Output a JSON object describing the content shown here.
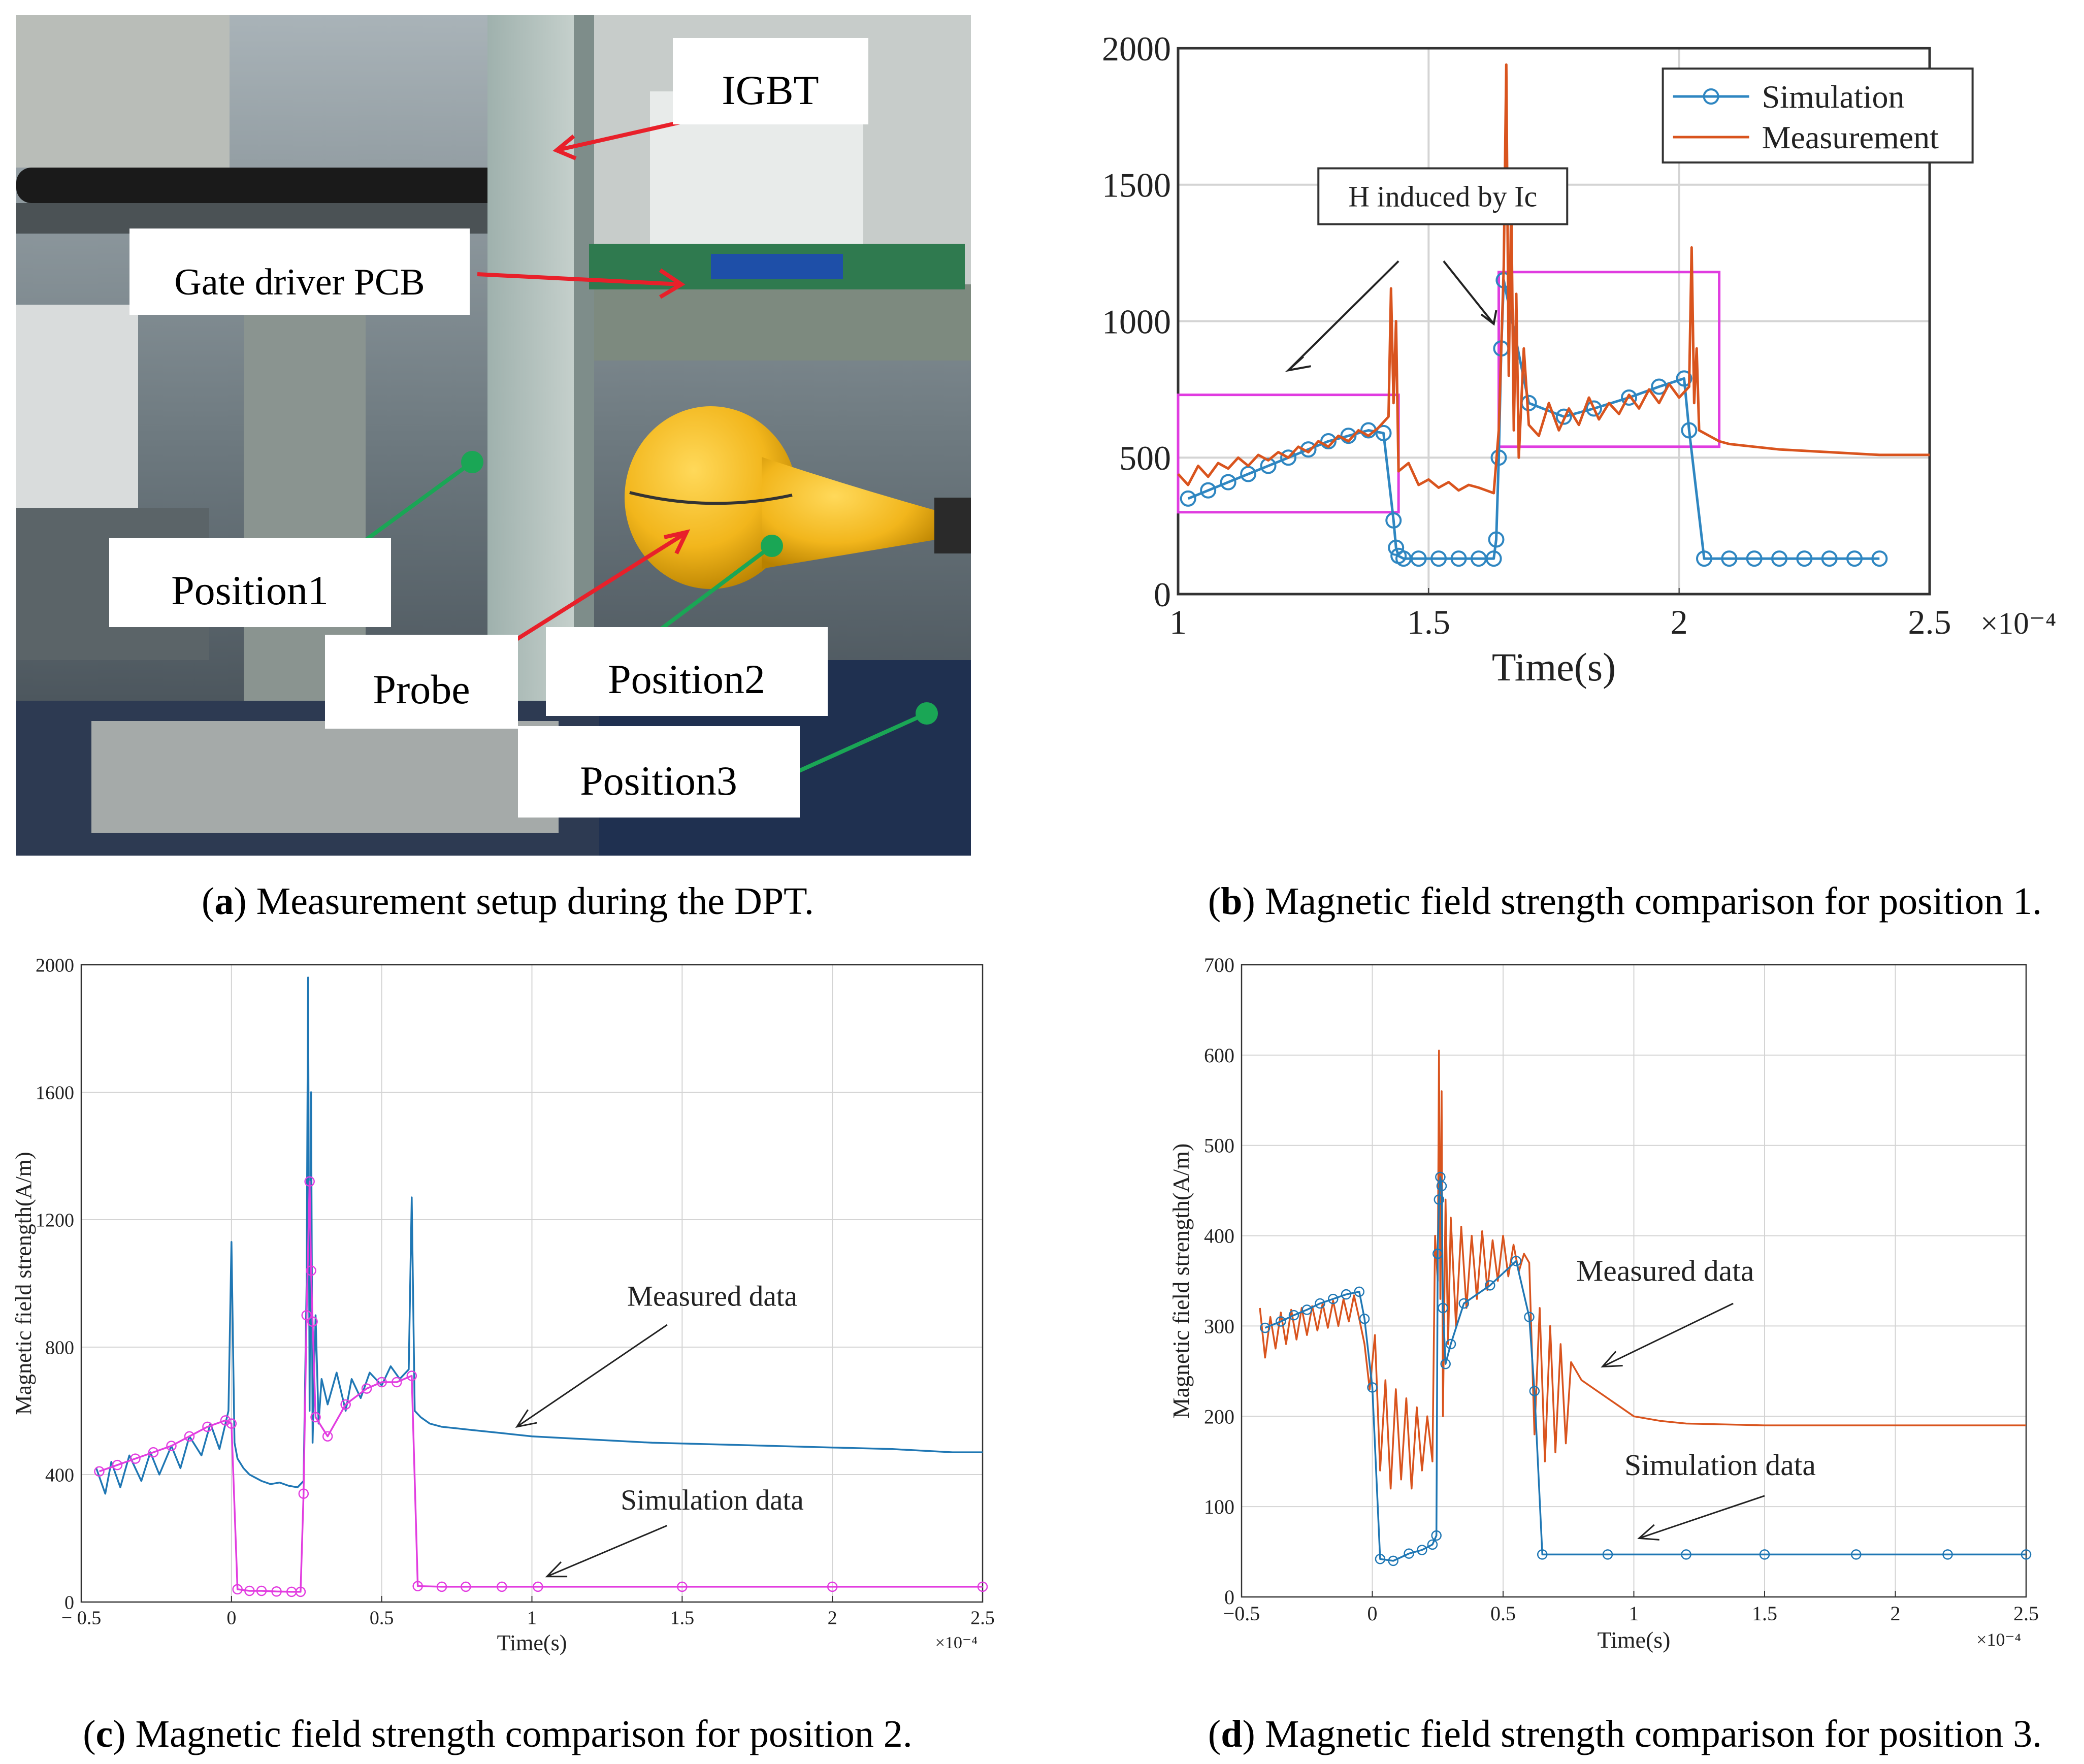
{
  "panel_a": {
    "labels": {
      "igbt": "IGBT",
      "gate_driver": "Gate driver PCB",
      "position1": "Position1",
      "probe": "Probe",
      "position2": "Position2",
      "position3": "Position3"
    },
    "caption": {
      "letter": "a",
      "text": "Measurement setup during the DPT."
    },
    "colors": {
      "arrow_red": "#e8202a",
      "arrow_green": "#1aa655",
      "probe_yellow": "#f2b61c"
    }
  },
  "captions": {
    "b": {
      "letter": "b",
      "text": "Magnetic field strength comparison for position 1."
    },
    "c": {
      "letter": "c",
      "text": "Magnetic field strength comparison for position 2."
    },
    "d": {
      "letter": "d",
      "text": "Magnetic field strength comparison for position 3."
    }
  },
  "chart_data": [
    {
      "id": "b",
      "type": "line",
      "xlabel": "Time(s)",
      "ylabel": "",
      "x_multiplier": "×10⁻⁴",
      "xlim": [
        1,
        2.5
      ],
      "ylim": [
        0,
        2000
      ],
      "xticks": [
        1,
        1.5,
        2,
        2.5
      ],
      "yticks": [
        0,
        500,
        1000,
        1500,
        2000
      ],
      "xtick_labels": [
        "1",
        "1.5",
        "2",
        "2.5"
      ],
      "ytick_labels": [
        "0",
        "500",
        "1000",
        "1500",
        "2000"
      ],
      "grid": true,
      "legend": {
        "position": "top-right",
        "entries": [
          "Simulation",
          "Measurement"
        ]
      },
      "annotation": "H induced by Ic",
      "highlight_boxes": [
        {
          "x": [
            1.0,
            1.44
          ],
          "y": [
            300,
            730
          ]
        },
        {
          "x": [
            1.64,
            2.08
          ],
          "y": [
            540,
            1180
          ]
        }
      ],
      "series": [
        {
          "name": "Simulation",
          "color": "#2e86c1",
          "marker": "circle",
          "x": [
            1.02,
            1.06,
            1.1,
            1.14,
            1.18,
            1.22,
            1.26,
            1.3,
            1.34,
            1.38,
            1.41,
            1.43,
            1.435,
            1.44,
            1.45,
            1.48,
            1.52,
            1.56,
            1.6,
            1.63,
            1.635,
            1.64,
            1.645,
            1.65,
            1.7,
            1.77,
            1.83,
            1.9,
            1.96,
            2.01,
            2.02,
            2.05,
            2.1,
            2.15,
            2.2,
            2.25,
            2.3,
            2.35,
            2.4
          ],
          "y": [
            350,
            380,
            410,
            440,
            470,
            500,
            530,
            560,
            580,
            600,
            590,
            270,
            170,
            140,
            130,
            130,
            130,
            130,
            130,
            130,
            200,
            500,
            900,
            1150,
            700,
            650,
            680,
            720,
            760,
            790,
            600,
            130,
            130,
            130,
            130,
            130,
            130,
            130,
            130
          ]
        },
        {
          "name": "Measurement",
          "color": "#d9541e",
          "x": [
            1.0,
            1.02,
            1.04,
            1.06,
            1.08,
            1.1,
            1.12,
            1.14,
            1.16,
            1.18,
            1.2,
            1.22,
            1.24,
            1.26,
            1.28,
            1.3,
            1.32,
            1.34,
            1.36,
            1.38,
            1.4,
            1.42,
            1.425,
            1.43,
            1.435,
            1.44,
            1.46,
            1.48,
            1.5,
            1.52,
            1.54,
            1.56,
            1.58,
            1.6,
            1.63,
            1.64,
            1.65,
            1.655,
            1.66,
            1.665,
            1.67,
            1.675,
            1.68,
            1.69,
            1.7,
            1.72,
            1.74,
            1.76,
            1.78,
            1.8,
            1.82,
            1.84,
            1.86,
            1.88,
            1.9,
            1.92,
            1.94,
            1.96,
            1.98,
            2.0,
            2.02,
            2.025,
            2.03,
            2.035,
            2.04,
            2.06,
            2.08,
            2.1,
            2.15,
            2.2,
            2.3,
            2.4,
            2.5
          ],
          "y": [
            440,
            400,
            470,
            430,
            480,
            460,
            500,
            470,
            510,
            490,
            520,
            500,
            540,
            520,
            560,
            540,
            580,
            560,
            600,
            580,
            610,
            650,
            1120,
            700,
            1000,
            450,
            480,
            400,
            420,
            390,
            410,
            380,
            400,
            390,
            370,
            600,
            1200,
            1940,
            800,
            1450,
            600,
            1100,
            500,
            900,
            620,
            580,
            700,
            600,
            680,
            620,
            720,
            640,
            700,
            660,
            730,
            680,
            750,
            700,
            770,
            720,
            760,
            1270,
            700,
            900,
            600,
            580,
            560,
            550,
            540,
            530,
            520,
            510,
            510
          ]
        }
      ]
    },
    {
      "id": "c",
      "type": "line",
      "xlabel": "Time(s)",
      "ylabel": "Magnetic field strength(A/m)",
      "x_multiplier": "×10⁻⁴",
      "xlim": [
        -0.5,
        2.5
      ],
      "ylim": [
        0,
        2000
      ],
      "xticks": [
        -0.5,
        0,
        0.5,
        1,
        1.5,
        2,
        2.5
      ],
      "yticks": [
        0,
        400,
        800,
        1200,
        1600,
        2000
      ],
      "xtick_labels": [
        "− 0.5",
        "0",
        "0.5",
        "1",
        "1.5",
        "2",
        "2.5"
      ],
      "ytick_labels": [
        "0",
        "400",
        "800",
        "1200",
        "1600",
        "2000"
      ],
      "grid": true,
      "annotations": [
        "Measured data",
        "Simulation data"
      ],
      "series": [
        {
          "name": "Measured data",
          "color": "#1f77b4",
          "x": [
            -0.45,
            -0.42,
            -0.4,
            -0.37,
            -0.34,
            -0.3,
            -0.27,
            -0.24,
            -0.2,
            -0.17,
            -0.14,
            -0.1,
            -0.07,
            -0.04,
            -0.01,
            0.0,
            0.01,
            0.02,
            0.04,
            0.06,
            0.08,
            0.1,
            0.13,
            0.16,
            0.19,
            0.22,
            0.24,
            0.25,
            0.255,
            0.26,
            0.265,
            0.27,
            0.28,
            0.29,
            0.3,
            0.32,
            0.35,
            0.38,
            0.4,
            0.43,
            0.46,
            0.5,
            0.53,
            0.56,
            0.59,
            0.6,
            0.61,
            0.63,
            0.66,
            0.7,
            0.75,
            0.8,
            0.9,
            1.0,
            1.2,
            1.4,
            1.6,
            1.8,
            2.0,
            2.2,
            2.4,
            2.5
          ],
          "y": [
            420,
            340,
            440,
            360,
            460,
            380,
            470,
            400,
            490,
            420,
            520,
            460,
            560,
            480,
            600,
            1130,
            500,
            450,
            420,
            400,
            390,
            380,
            370,
            375,
            365,
            360,
            380,
            1000,
            1960,
            600,
            1600,
            500,
            900,
            560,
            700,
            620,
            720,
            600,
            700,
            640,
            720,
            680,
            740,
            700,
            730,
            1270,
            600,
            580,
            560,
            550,
            545,
            540,
            530,
            520,
            510,
            500,
            495,
            490,
            485,
            480,
            470,
            470
          ]
        },
        {
          "name": "Simulation data",
          "color": "#e23de0",
          "marker": "circle",
          "x": [
            -0.44,
            -0.38,
            -0.32,
            -0.26,
            -0.2,
            -0.14,
            -0.08,
            -0.02,
            0.0,
            0.02,
            0.06,
            0.1,
            0.15,
            0.2,
            0.23,
            0.24,
            0.25,
            0.26,
            0.265,
            0.27,
            0.28,
            0.32,
            0.38,
            0.45,
            0.5,
            0.55,
            0.6,
            0.62,
            0.7,
            0.78,
            0.9,
            1.02,
            1.5,
            2.0,
            2.5
          ],
          "y": [
            410,
            430,
            450,
            470,
            490,
            520,
            550,
            570,
            560,
            40,
            35,
            35,
            33,
            32,
            32,
            340,
            900,
            1320,
            1040,
            880,
            580,
            520,
            620,
            670,
            690,
            690,
            710,
            50,
            48,
            48,
            48,
            48,
            48,
            48,
            48
          ]
        }
      ]
    },
    {
      "id": "d",
      "type": "line",
      "xlabel": "Time(s)",
      "ylabel": "Magnetic field strength(A/m)",
      "x_multiplier": "×10⁻⁴",
      "xlim": [
        -0.5,
        2.5
      ],
      "ylim": [
        0,
        700
      ],
      "xticks": [
        -0.5,
        0,
        0.5,
        1,
        1.5,
        2,
        2.5
      ],
      "yticks": [
        0,
        100,
        200,
        300,
        400,
        500,
        600,
        700
      ],
      "xtick_labels": [
        "−0.5",
        "0",
        "0.5",
        "1",
        "1.5",
        "2",
        "2.5"
      ],
      "ytick_labels": [
        "0",
        "100",
        "200",
        "300",
        "400",
        "500",
        "600",
        "700"
      ],
      "grid": true,
      "annotations": [
        "Measured data",
        "Simulation data"
      ],
      "series": [
        {
          "name": "Measured data",
          "color": "#d9541e",
          "x": [
            -0.43,
            -0.41,
            -0.39,
            -0.37,
            -0.35,
            -0.33,
            -0.31,
            -0.29,
            -0.27,
            -0.25,
            -0.23,
            -0.21,
            -0.19,
            -0.17,
            -0.15,
            -0.13,
            -0.11,
            -0.09,
            -0.07,
            -0.05,
            -0.03,
            -0.01,
            0.01,
            0.03,
            0.05,
            0.07,
            0.09,
            0.11,
            0.13,
            0.15,
            0.17,
            0.19,
            0.21,
            0.23,
            0.24,
            0.25,
            0.255,
            0.26,
            0.265,
            0.27,
            0.28,
            0.29,
            0.3,
            0.32,
            0.34,
            0.36,
            0.38,
            0.4,
            0.42,
            0.44,
            0.46,
            0.48,
            0.5,
            0.52,
            0.54,
            0.56,
            0.58,
            0.6,
            0.62,
            0.64,
            0.66,
            0.68,
            0.7,
            0.72,
            0.74,
            0.76,
            0.8,
            0.85,
            0.9,
            0.95,
            1.0,
            1.1,
            1.2,
            1.5,
            1.8,
            2.1,
            2.4,
            2.5
          ],
          "y": [
            320,
            265,
            310,
            275,
            315,
            280,
            318,
            285,
            320,
            290,
            322,
            295,
            325,
            298,
            328,
            300,
            330,
            305,
            334,
            308,
            280,
            230,
            290,
            140,
            240,
            120,
            230,
            130,
            220,
            120,
            210,
            140,
            200,
            150,
            400,
            350,
            605,
            330,
            560,
            200,
            440,
            280,
            420,
            300,
            410,
            320,
            400,
            330,
            405,
            340,
            395,
            350,
            400,
            355,
            390,
            360,
            380,
            370,
            180,
            320,
            150,
            300,
            160,
            280,
            170,
            260,
            240,
            230,
            220,
            210,
            200,
            195,
            192,
            190,
            190,
            190,
            190,
            190
          ]
        },
        {
          "name": "Simulation data",
          "color": "#1f77b4",
          "marker": "circle",
          "x": [
            -0.41,
            -0.35,
            -0.3,
            -0.25,
            -0.2,
            -0.15,
            -0.1,
            -0.05,
            -0.03,
            0.0,
            0.03,
            0.08,
            0.14,
            0.19,
            0.23,
            0.245,
            0.25,
            0.255,
            0.26,
            0.265,
            0.27,
            0.28,
            0.3,
            0.35,
            0.45,
            0.55,
            0.6,
            0.62,
            0.65,
            0.9,
            1.2,
            1.5,
            1.85,
            2.2,
            2.5
          ],
          "y": [
            298,
            305,
            312,
            318,
            325,
            330,
            335,
            338,
            308,
            232,
            42,
            40,
            48,
            52,
            58,
            68,
            380,
            440,
            465,
            455,
            320,
            258,
            280,
            325,
            345,
            372,
            310,
            228,
            47,
            47,
            47,
            47,
            47,
            47,
            47
          ]
        }
      ]
    }
  ]
}
